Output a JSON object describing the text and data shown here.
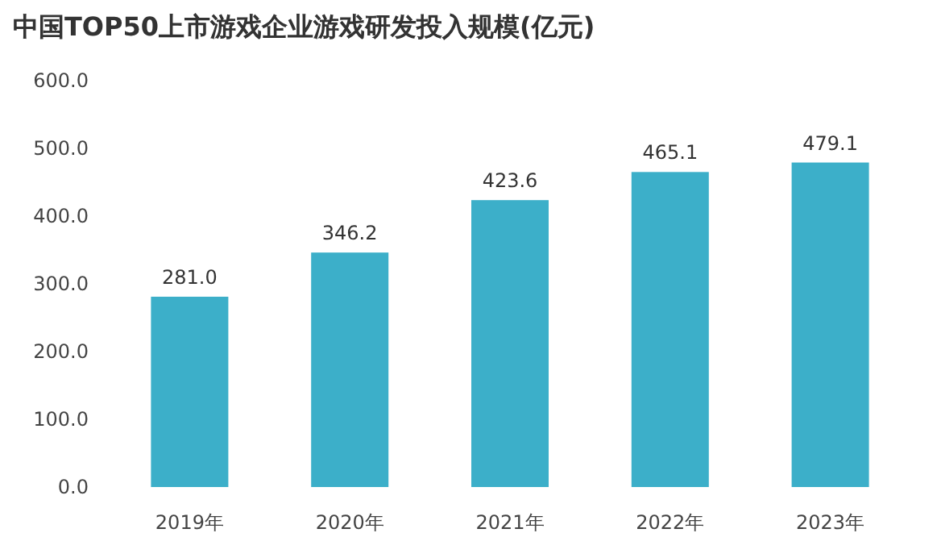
{
  "chart_data": {
    "type": "bar",
    "title": "中国TOP50上市游戏企业游戏研发投入规模(亿元)",
    "categories": [
      "2019年",
      "2020年",
      "2021年",
      "2022年",
      "2023年"
    ],
    "values": [
      281.0,
      346.2,
      423.6,
      465.1,
      479.1
    ],
    "value_labels": [
      "281.0",
      "346.2",
      "423.6",
      "465.1",
      "479.1"
    ],
    "color": "#3cafc9",
    "ylim": [
      0,
      600
    ],
    "yticks": [
      {
        "value": 0,
        "label": "0.0"
      },
      {
        "value": 100,
        "label": "100.0"
      },
      {
        "value": 200,
        "label": "200.0"
      },
      {
        "value": 300,
        "label": "300.0"
      },
      {
        "value": 400,
        "label": "400.0"
      },
      {
        "value": 500,
        "label": "500.0"
      },
      {
        "value": 600,
        "label": "600.0"
      }
    ],
    "grid": false
  }
}
